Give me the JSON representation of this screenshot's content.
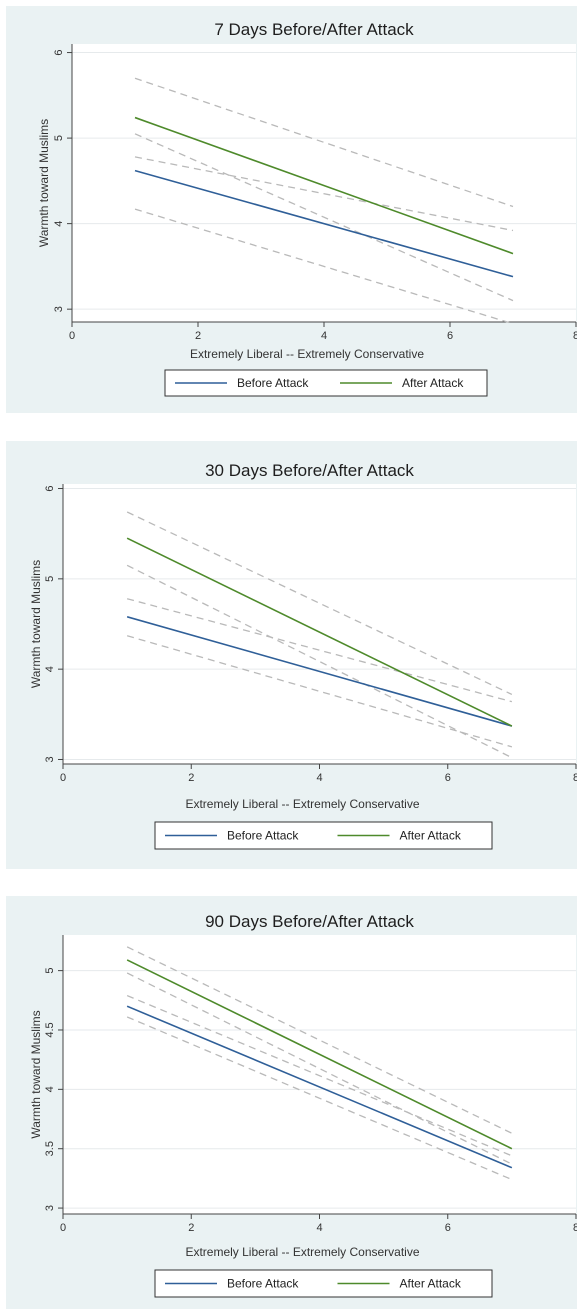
{
  "chart_data": [
    {
      "type": "line",
      "title": "7 Days Before/After Attack",
      "xlabel": "Extremely Liberal -- Extremely Conservative",
      "ylabel": "Warmth toward Muslims",
      "xlim": [
        0,
        8
      ],
      "ylim": [
        2.85,
        6.1
      ],
      "xticks": [
        0,
        2,
        4,
        6,
        8
      ],
      "yticks": [
        3,
        4,
        5,
        6
      ],
      "grid": true,
      "legend_position": "bottom",
      "series": [
        {
          "name": "Before Attack",
          "color": "#2f5f98",
          "x": [
            1,
            7
          ],
          "y": [
            4.62,
            3.38
          ],
          "ci_lower": [
            4.17,
            2.83
          ],
          "ci_upper": [
            4.78,
            3.92
          ]
        },
        {
          "name": "After Attack",
          "color": "#4e8a2b",
          "x": [
            1,
            7
          ],
          "y": [
            5.24,
            3.65
          ],
          "ci_lower": [
            5.05,
            3.1
          ],
          "ci_upper": [
            5.7,
            4.2
          ]
        }
      ]
    },
    {
      "type": "line",
      "title": "30 Days Before/After Attack",
      "xlabel": "Extremely Liberal -- Extremely Conservative",
      "ylabel": "Warmth toward Muslims",
      "xlim": [
        0,
        8
      ],
      "ylim": [
        2.95,
        6.05
      ],
      "xticks": [
        0,
        2,
        4,
        6,
        8
      ],
      "yticks": [
        3,
        4,
        5,
        6
      ],
      "grid": true,
      "legend_position": "bottom",
      "series": [
        {
          "name": "Before Attack",
          "color": "#2f5f98",
          "x": [
            1,
            7
          ],
          "y": [
            4.58,
            3.37
          ],
          "ci_lower": [
            4.37,
            3.14
          ],
          "ci_upper": [
            4.78,
            3.64
          ]
        },
        {
          "name": "After Attack",
          "color": "#4e8a2b",
          "x": [
            1,
            7
          ],
          "y": [
            5.45,
            3.37
          ],
          "ci_lower": [
            5.15,
            3.02
          ],
          "ci_upper": [
            5.74,
            3.72
          ]
        }
      ]
    },
    {
      "type": "line",
      "title": "90 Days Before/After Attack",
      "xlabel": "Extremely Liberal -- Extremely Conservative",
      "ylabel": "Warmth toward Muslims",
      "xlim": [
        0,
        8
      ],
      "ylim": [
        2.95,
        5.3
      ],
      "xticks": [
        0,
        2,
        4,
        6,
        8
      ],
      "yticks": [
        3,
        3.5,
        4,
        4.5,
        5
      ],
      "grid": true,
      "legend_position": "bottom",
      "series": [
        {
          "name": "Before Attack",
          "color": "#2f5f98",
          "x": [
            1,
            7
          ],
          "y": [
            4.7,
            3.34
          ],
          "ci_lower": [
            4.61,
            3.24
          ],
          "ci_upper": [
            4.79,
            3.44
          ]
        },
        {
          "name": "After Attack",
          "color": "#4e8a2b",
          "x": [
            1,
            7
          ],
          "y": [
            5.09,
            3.5
          ],
          "ci_lower": [
            4.98,
            3.37
          ],
          "ci_upper": [
            5.2,
            3.63
          ]
        }
      ]
    }
  ]
}
